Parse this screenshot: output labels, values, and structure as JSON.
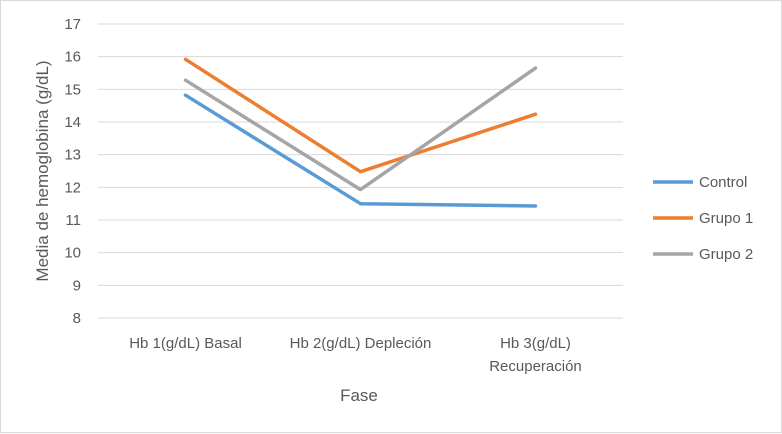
{
  "chart_data": {
    "type": "line",
    "title": "",
    "xlabel": "Fase",
    "ylabel": "Media de hemoglobina (g/dL)",
    "categories": [
      [
        "Hb 1(g/dL) Basal"
      ],
      [
        "Hb 2(g/dL) Depleción"
      ],
      [
        "Hb 3(g/dL)",
        "Recuperación"
      ]
    ],
    "ylim": [
      8,
      17
    ],
    "yticks": [
      8,
      9,
      10,
      11,
      12,
      13,
      14,
      15,
      16,
      17
    ],
    "grid": true,
    "legend_position": "right",
    "series": [
      {
        "name": "Control",
        "color": "#5b9bd5",
        "values": [
          14.82,
          11.5,
          11.43
        ]
      },
      {
        "name": "Grupo 1",
        "color": "#ed7d31",
        "values": [
          15.92,
          12.48,
          14.24
        ]
      },
      {
        "name": "Grupo 2",
        "color": "#a5a5a5",
        "values": [
          15.28,
          11.93,
          15.65
        ]
      }
    ]
  }
}
